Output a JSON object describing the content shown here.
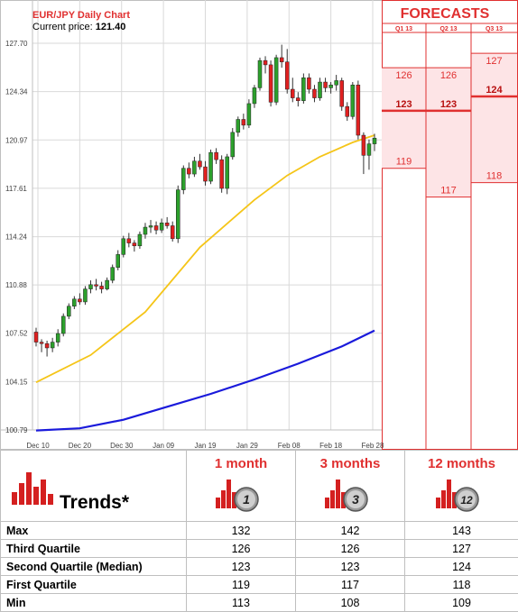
{
  "chart_data": {
    "type": "candlestick",
    "title": "EUR/JPY Daily Chart",
    "subtitle_label": "Current price:",
    "current_price": "121.40",
    "y_ticks": [
      "127.70",
      "124.34",
      "120.97",
      "117.61",
      "114.24",
      "110.88",
      "107.52",
      "104.15",
      "100.79"
    ],
    "y_tick_values": [
      127.7,
      124.34,
      120.97,
      117.61,
      114.24,
      110.88,
      107.52,
      104.15,
      100.79
    ],
    "ylim": [
      100.79,
      127.7
    ],
    "x_ticks": [
      "Dec 10",
      "Dec 20",
      "Dec 30",
      "Jan 09",
      "Jan 19",
      "Jan 29",
      "Feb 08",
      "Feb 18",
      "Feb 28"
    ],
    "candles": [
      {
        "o": 107.6,
        "h": 107.9,
        "l": 106.6,
        "c": 106.9
      },
      {
        "o": 106.9,
        "h": 107.1,
        "l": 106.2,
        "c": 106.8
      },
      {
        "o": 106.8,
        "h": 107.0,
        "l": 105.9,
        "c": 106.5
      },
      {
        "o": 106.5,
        "h": 107.2,
        "l": 106.2,
        "c": 106.9
      },
      {
        "o": 106.9,
        "h": 107.8,
        "l": 106.6,
        "c": 107.5
      },
      {
        "o": 107.5,
        "h": 108.9,
        "l": 107.3,
        "c": 108.7
      },
      {
        "o": 108.7,
        "h": 109.6,
        "l": 108.5,
        "c": 109.4
      },
      {
        "o": 109.4,
        "h": 110.1,
        "l": 109.2,
        "c": 109.9
      },
      {
        "o": 109.9,
        "h": 110.3,
        "l": 109.5,
        "c": 109.7
      },
      {
        "o": 109.7,
        "h": 110.8,
        "l": 109.5,
        "c": 110.6
      },
      {
        "o": 110.6,
        "h": 111.2,
        "l": 110.3,
        "c": 110.9
      },
      {
        "o": 110.9,
        "h": 111.3,
        "l": 110.5,
        "c": 110.8
      },
      {
        "o": 110.8,
        "h": 111.1,
        "l": 110.3,
        "c": 110.6
      },
      {
        "o": 110.6,
        "h": 111.4,
        "l": 110.5,
        "c": 111.2
      },
      {
        "o": 111.2,
        "h": 112.3,
        "l": 111.0,
        "c": 112.1
      },
      {
        "o": 112.1,
        "h": 113.3,
        "l": 111.9,
        "c": 113.0
      },
      {
        "o": 113.0,
        "h": 114.3,
        "l": 112.8,
        "c": 114.1
      },
      {
        "o": 114.1,
        "h": 114.5,
        "l": 113.5,
        "c": 113.8
      },
      {
        "o": 113.8,
        "h": 114.0,
        "l": 113.2,
        "c": 113.6
      },
      {
        "o": 113.6,
        "h": 114.6,
        "l": 113.4,
        "c": 114.4
      },
      {
        "o": 114.4,
        "h": 115.2,
        "l": 114.1,
        "c": 114.9
      },
      {
        "o": 114.9,
        "h": 115.4,
        "l": 114.5,
        "c": 115.0
      },
      {
        "o": 115.0,
        "h": 115.3,
        "l": 114.4,
        "c": 114.7
      },
      {
        "o": 114.7,
        "h": 115.5,
        "l": 114.5,
        "c": 115.2
      },
      {
        "o": 115.2,
        "h": 115.6,
        "l": 114.8,
        "c": 115.0
      },
      {
        "o": 115.0,
        "h": 115.3,
        "l": 113.9,
        "c": 114.1
      },
      {
        "o": 114.1,
        "h": 117.8,
        "l": 113.8,
        "c": 117.5
      },
      {
        "o": 117.5,
        "h": 119.2,
        "l": 117.2,
        "c": 119.0
      },
      {
        "o": 119.0,
        "h": 119.4,
        "l": 118.3,
        "c": 118.6
      },
      {
        "o": 118.6,
        "h": 119.8,
        "l": 118.4,
        "c": 119.5
      },
      {
        "o": 119.5,
        "h": 120.0,
        "l": 118.9,
        "c": 119.1
      },
      {
        "o": 119.1,
        "h": 119.5,
        "l": 117.8,
        "c": 118.1
      },
      {
        "o": 118.1,
        "h": 120.3,
        "l": 117.9,
        "c": 120.1
      },
      {
        "o": 120.1,
        "h": 120.4,
        "l": 119.3,
        "c": 119.6
      },
      {
        "o": 119.6,
        "h": 119.9,
        "l": 117.3,
        "c": 117.6
      },
      {
        "o": 117.6,
        "h": 120.0,
        "l": 117.2,
        "c": 119.8
      },
      {
        "o": 119.8,
        "h": 121.8,
        "l": 119.6,
        "c": 121.5
      },
      {
        "o": 121.5,
        "h": 122.6,
        "l": 121.2,
        "c": 122.4
      },
      {
        "o": 122.4,
        "h": 122.8,
        "l": 121.7,
        "c": 122.0
      },
      {
        "o": 122.0,
        "h": 123.8,
        "l": 121.8,
        "c": 123.5
      },
      {
        "o": 123.5,
        "h": 124.8,
        "l": 123.2,
        "c": 124.6
      },
      {
        "o": 124.6,
        "h": 126.7,
        "l": 124.4,
        "c": 126.5
      },
      {
        "o": 126.5,
        "h": 126.8,
        "l": 125.6,
        "c": 126.2
      },
      {
        "o": 126.2,
        "h": 126.5,
        "l": 123.3,
        "c": 123.6
      },
      {
        "o": 123.6,
        "h": 126.9,
        "l": 123.4,
        "c": 126.7
      },
      {
        "o": 126.7,
        "h": 127.6,
        "l": 126.0,
        "c": 126.4
      },
      {
        "o": 126.4,
        "h": 127.3,
        "l": 124.2,
        "c": 124.5
      },
      {
        "o": 124.5,
        "h": 125.3,
        "l": 123.6,
        "c": 123.9
      },
      {
        "o": 123.9,
        "h": 124.3,
        "l": 123.3,
        "c": 123.7
      },
      {
        "o": 123.7,
        "h": 125.6,
        "l": 123.5,
        "c": 125.3
      },
      {
        "o": 125.3,
        "h": 125.6,
        "l": 124.2,
        "c": 124.5
      },
      {
        "o": 124.5,
        "h": 124.8,
        "l": 123.6,
        "c": 123.9
      },
      {
        "o": 123.9,
        "h": 125.3,
        "l": 123.7,
        "c": 125.0
      },
      {
        "o": 125.0,
        "h": 125.3,
        "l": 124.3,
        "c": 124.6
      },
      {
        "o": 124.6,
        "h": 125.0,
        "l": 124.2,
        "c": 124.8
      },
      {
        "o": 124.8,
        "h": 125.5,
        "l": 124.4,
        "c": 125.1
      },
      {
        "o": 125.1,
        "h": 125.3,
        "l": 123.0,
        "c": 123.3
      },
      {
        "o": 123.3,
        "h": 123.6,
        "l": 122.3,
        "c": 122.6
      },
      {
        "o": 122.6,
        "h": 125.0,
        "l": 122.4,
        "c": 124.8
      },
      {
        "o": 124.8,
        "h": 125.1,
        "l": 121.0,
        "c": 121.3
      },
      {
        "o": 121.3,
        "h": 121.5,
        "l": 118.6,
        "c": 119.9
      },
      {
        "o": 119.9,
        "h": 121.0,
        "l": 118.9,
        "c": 120.7
      },
      {
        "o": 120.7,
        "h": 121.4,
        "l": 120.2,
        "c": 121.1
      }
    ],
    "ma_short_color": "#f5c518",
    "ma_short": [
      [
        0,
        104.1
      ],
      [
        10,
        106.0
      ],
      [
        20,
        109.0
      ],
      [
        30,
        113.5
      ],
      [
        40,
        116.8
      ],
      [
        46,
        118.5
      ],
      [
        52,
        119.8
      ],
      [
        58,
        120.8
      ],
      [
        62,
        121.3
      ]
    ],
    "ma_long_color": "#1a1adb",
    "ma_long": [
      [
        0,
        100.75
      ],
      [
        8,
        100.9
      ],
      [
        16,
        101.5
      ],
      [
        24,
        102.4
      ],
      [
        32,
        103.3
      ],
      [
        40,
        104.3
      ],
      [
        48,
        105.4
      ],
      [
        56,
        106.6
      ],
      [
        62,
        107.7
      ]
    ],
    "colors": {
      "up": "#2ca02c",
      "down": "#e02020",
      "forecast": "#e03030",
      "forecast_fill": "#fde4e6"
    }
  },
  "forecast_panel": {
    "title": "FORECASTS",
    "columns": [
      {
        "label": "Q1 13",
        "high": 126,
        "median": 123,
        "low": 119
      },
      {
        "label": "Q2 13",
        "high": 126,
        "median": 123,
        "low": 117
      },
      {
        "label": "Q3 13",
        "high": 127,
        "median": 124,
        "low": 118
      }
    ]
  },
  "trends": {
    "title": "Trends*",
    "horizons": [
      {
        "label": "1 month",
        "badge": "1"
      },
      {
        "label": "3 months",
        "badge": "3"
      },
      {
        "label": "12 months",
        "badge": "12"
      }
    ],
    "rows": [
      {
        "label": "Max",
        "values": [
          "132",
          "142",
          "143"
        ]
      },
      {
        "label": "Third Quartile",
        "values": [
          "126",
          "126",
          "127"
        ]
      },
      {
        "label": "Second Quartile (Median)",
        "values": [
          "123",
          "123",
          "124"
        ]
      },
      {
        "label": "First Quartile",
        "values": [
          "119",
          "117",
          "118"
        ]
      },
      {
        "label": "Min",
        "values": [
          "113",
          "108",
          "109"
        ]
      }
    ]
  }
}
